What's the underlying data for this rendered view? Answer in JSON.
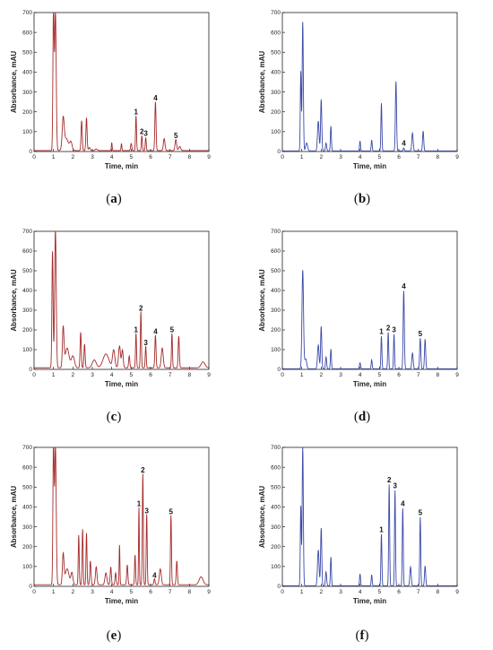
{
  "panels": [
    {
      "caption_letter": "a",
      "color": "#a52a2a",
      "chart_data": {
        "type": "line",
        "xlabel": "Time, min",
        "ylabel": "Absorbance, mAU",
        "xlim": [
          0,
          9
        ],
        "ylim": [
          0,
          700
        ],
        "x_ticks": [
          "0",
          "1",
          "2",
          "3",
          "4",
          "5",
          "6",
          "7",
          "8",
          "9"
        ],
        "y_ticks": [
          "0",
          "100",
          "200",
          "300",
          "400",
          "500",
          "600",
          "700"
        ],
        "baseline": 5,
        "peaks": [
          {
            "x": 1.0,
            "y": 700,
            "w": 0.03
          },
          {
            "x": 1.1,
            "y": 700,
            "w": 0.04
          },
          {
            "x": 1.5,
            "y": 145,
            "w": 0.05
          },
          {
            "x": 1.65,
            "y": 60,
            "w": 0.12
          },
          {
            "x": 1.9,
            "y": 40,
            "w": 0.06
          },
          {
            "x": 2.45,
            "y": 150,
            "w": 0.03
          },
          {
            "x": 2.7,
            "y": 165,
            "w": 0.03
          },
          {
            "x": 2.85,
            "y": 15,
            "w": 0.04
          },
          {
            "x": 3.2,
            "y": 8,
            "w": 0.05
          },
          {
            "x": 4.0,
            "y": 40,
            "w": 0.02
          },
          {
            "x": 4.5,
            "y": 35,
            "w": 0.02
          },
          {
            "x": 5.0,
            "y": 35,
            "w": 0.03
          },
          {
            "x": 5.25,
            "y": 175,
            "w": 0.025
          },
          {
            "x": 5.55,
            "y": 75,
            "w": 0.025
          },
          {
            "x": 5.75,
            "y": 65,
            "w": 0.025
          },
          {
            "x": 6.25,
            "y": 245,
            "w": 0.03
          },
          {
            "x": 6.7,
            "y": 60,
            "w": 0.04
          },
          {
            "x": 7.3,
            "y": 55,
            "w": 0.04
          },
          {
            "x": 7.5,
            "y": 20,
            "w": 0.05
          }
        ],
        "peak_labels": [
          {
            "text": "1",
            "x": 5.25,
            "y": 175
          },
          {
            "text": "2",
            "x": 5.55,
            "y": 75
          },
          {
            "text": "3",
            "x": 5.75,
            "y": 65
          },
          {
            "text": "4",
            "x": 6.25,
            "y": 245
          },
          {
            "text": "5",
            "x": 7.3,
            "y": 55
          }
        ]
      }
    },
    {
      "caption_letter": "b",
      "color": "#3b4aa8",
      "chart_data": {
        "type": "line",
        "xlabel": "Time, min",
        "ylabel": "Absorbance, mAU",
        "xlim": [
          0,
          9
        ],
        "ylim": [
          0,
          700
        ],
        "x_ticks": [
          "0",
          "1",
          "2",
          "3",
          "4",
          "5",
          "6",
          "7",
          "8",
          "9"
        ],
        "y_ticks": [
          "0",
          "100",
          "200",
          "300",
          "400",
          "500",
          "600",
          "700"
        ],
        "baseline": 3,
        "peaks": [
          {
            "x": 0.95,
            "y": 400,
            "w": 0.025
          },
          {
            "x": 1.05,
            "y": 650,
            "w": 0.03
          },
          {
            "x": 1.25,
            "y": 40,
            "w": 0.05
          },
          {
            "x": 1.85,
            "y": 150,
            "w": 0.04
          },
          {
            "x": 2.0,
            "y": 260,
            "w": 0.03
          },
          {
            "x": 2.25,
            "y": 40,
            "w": 0.03
          },
          {
            "x": 2.5,
            "y": 125,
            "w": 0.025
          },
          {
            "x": 4.0,
            "y": 50,
            "w": 0.025
          },
          {
            "x": 4.6,
            "y": 55,
            "w": 0.025
          },
          {
            "x": 5.1,
            "y": 240,
            "w": 0.025
          },
          {
            "x": 5.85,
            "y": 350,
            "w": 0.03
          },
          {
            "x": 6.25,
            "y": 15,
            "w": 0.03
          },
          {
            "x": 6.7,
            "y": 90,
            "w": 0.035
          },
          {
            "x": 7.25,
            "y": 100,
            "w": 0.03
          }
        ],
        "peak_labels": [
          {
            "text": "4",
            "x": 6.25,
            "y": 15
          }
        ]
      }
    },
    {
      "caption_letter": "c",
      "color": "#a52a2a",
      "chart_data": {
        "type": "line",
        "xlabel": "Time, min",
        "ylabel": "Absorbance, mAU",
        "xlim": [
          0,
          9
        ],
        "ylim": [
          0,
          700
        ],
        "x_ticks": [
          "0",
          "1",
          "2",
          "3",
          "4",
          "5",
          "6",
          "7",
          "8",
          "9"
        ],
        "y_ticks": [
          "0",
          "100",
          "200",
          "300",
          "400",
          "500",
          "600",
          "700"
        ],
        "baseline": 8,
        "peaks": [
          {
            "x": 0.95,
            "y": 590,
            "w": 0.03
          },
          {
            "x": 1.1,
            "y": 700,
            "w": 0.04
          },
          {
            "x": 1.5,
            "y": 200,
            "w": 0.04
          },
          {
            "x": 1.7,
            "y": 100,
            "w": 0.1
          },
          {
            "x": 2.0,
            "y": 60,
            "w": 0.08
          },
          {
            "x": 2.4,
            "y": 180,
            "w": 0.03
          },
          {
            "x": 2.6,
            "y": 120,
            "w": 0.03
          },
          {
            "x": 3.1,
            "y": 40,
            "w": 0.1
          },
          {
            "x": 3.7,
            "y": 70,
            "w": 0.15
          },
          {
            "x": 4.1,
            "y": 90,
            "w": 0.06
          },
          {
            "x": 4.4,
            "y": 110,
            "w": 0.05
          },
          {
            "x": 4.55,
            "y": 90,
            "w": 0.04
          },
          {
            "x": 4.9,
            "y": 60,
            "w": 0.03
          },
          {
            "x": 5.25,
            "y": 175,
            "w": 0.025
          },
          {
            "x": 5.5,
            "y": 285,
            "w": 0.025
          },
          {
            "x": 5.75,
            "y": 110,
            "w": 0.025
          },
          {
            "x": 6.25,
            "y": 165,
            "w": 0.03
          },
          {
            "x": 6.6,
            "y": 100,
            "w": 0.05
          },
          {
            "x": 7.1,
            "y": 175,
            "w": 0.025
          },
          {
            "x": 7.45,
            "y": 160,
            "w": 0.03
          },
          {
            "x": 8.7,
            "y": 30,
            "w": 0.1
          }
        ],
        "peak_labels": [
          {
            "text": "1",
            "x": 5.25,
            "y": 175
          },
          {
            "text": "2",
            "x": 5.5,
            "y": 285
          },
          {
            "text": "3",
            "x": 5.75,
            "y": 110
          },
          {
            "text": "4",
            "x": 6.25,
            "y": 165
          },
          {
            "text": "5",
            "x": 7.1,
            "y": 175
          }
        ]
      }
    },
    {
      "caption_letter": "d",
      "color": "#3b4aa8",
      "chart_data": {
        "type": "line",
        "xlabel": "Time, min",
        "ylabel": "Absorbance, mAU",
        "xlim": [
          0,
          9
        ],
        "ylim": [
          0,
          700
        ],
        "x_ticks": [
          "0",
          "1",
          "2",
          "3",
          "4",
          "5",
          "6",
          "7",
          "8",
          "9"
        ],
        "y_ticks": [
          "0",
          "100",
          "200",
          "300",
          "400",
          "500",
          "600",
          "700"
        ],
        "baseline": 3,
        "peaks": [
          {
            "x": 1.05,
            "y": 500,
            "w": 0.04
          },
          {
            "x": 1.2,
            "y": 50,
            "w": 0.05
          },
          {
            "x": 1.85,
            "y": 120,
            "w": 0.04
          },
          {
            "x": 2.0,
            "y": 215,
            "w": 0.03
          },
          {
            "x": 2.25,
            "y": 60,
            "w": 0.03
          },
          {
            "x": 2.5,
            "y": 100,
            "w": 0.025
          },
          {
            "x": 4.0,
            "y": 30,
            "w": 0.03
          },
          {
            "x": 4.6,
            "y": 45,
            "w": 0.025
          },
          {
            "x": 5.1,
            "y": 165,
            "w": 0.025
          },
          {
            "x": 5.45,
            "y": 185,
            "w": 0.025
          },
          {
            "x": 5.75,
            "y": 175,
            "w": 0.025
          },
          {
            "x": 6.25,
            "y": 395,
            "w": 0.03
          },
          {
            "x": 6.7,
            "y": 80,
            "w": 0.035
          },
          {
            "x": 7.1,
            "y": 155,
            "w": 0.03
          },
          {
            "x": 7.35,
            "y": 150,
            "w": 0.03
          }
        ],
        "peak_labels": [
          {
            "text": "1",
            "x": 5.1,
            "y": 165
          },
          {
            "text": "2",
            "x": 5.45,
            "y": 185
          },
          {
            "text": "3",
            "x": 5.75,
            "y": 175
          },
          {
            "text": "4",
            "x": 6.25,
            "y": 395
          },
          {
            "text": "5",
            "x": 7.1,
            "y": 155
          }
        ]
      }
    },
    {
      "caption_letter": "e",
      "color": "#a52a2a",
      "chart_data": {
        "type": "line",
        "xlabel": "Time, min",
        "ylabel": "Absorbance, mAU",
        "xlim": [
          0,
          9
        ],
        "ylim": [
          0,
          700
        ],
        "x_ticks": [
          "0",
          "1",
          "2",
          "3",
          "4",
          "5",
          "6",
          "7",
          "8",
          "9"
        ],
        "y_ticks": [
          "0",
          "100",
          "200",
          "300",
          "400",
          "500",
          "600",
          "700"
        ],
        "baseline": 8,
        "peaks": [
          {
            "x": 1.0,
            "y": 700,
            "w": 0.03
          },
          {
            "x": 1.1,
            "y": 700,
            "w": 0.04
          },
          {
            "x": 1.5,
            "y": 150,
            "w": 0.04
          },
          {
            "x": 1.7,
            "y": 80,
            "w": 0.1
          },
          {
            "x": 1.95,
            "y": 60,
            "w": 0.05
          },
          {
            "x": 2.3,
            "y": 250,
            "w": 0.025
          },
          {
            "x": 2.5,
            "y": 280,
            "w": 0.025
          },
          {
            "x": 2.7,
            "y": 260,
            "w": 0.025
          },
          {
            "x": 2.9,
            "y": 120,
            "w": 0.03
          },
          {
            "x": 3.2,
            "y": 90,
            "w": 0.04
          },
          {
            "x": 3.7,
            "y": 60,
            "w": 0.05
          },
          {
            "x": 3.95,
            "y": 90,
            "w": 0.03
          },
          {
            "x": 4.2,
            "y": 60,
            "w": 0.03
          },
          {
            "x": 4.4,
            "y": 200,
            "w": 0.02
          },
          {
            "x": 4.8,
            "y": 100,
            "w": 0.03
          },
          {
            "x": 5.2,
            "y": 150,
            "w": 0.025
          },
          {
            "x": 5.4,
            "y": 390,
            "w": 0.02
          },
          {
            "x": 5.6,
            "y": 560,
            "w": 0.025
          },
          {
            "x": 5.8,
            "y": 355,
            "w": 0.025
          },
          {
            "x": 6.2,
            "y": 30,
            "w": 0.03
          },
          {
            "x": 6.5,
            "y": 80,
            "w": 0.05
          },
          {
            "x": 7.05,
            "y": 350,
            "w": 0.025
          },
          {
            "x": 7.35,
            "y": 120,
            "w": 0.03
          },
          {
            "x": 8.6,
            "y": 40,
            "w": 0.1
          }
        ],
        "peak_labels": [
          {
            "text": "1",
            "x": 5.4,
            "y": 390
          },
          {
            "text": "2",
            "x": 5.6,
            "y": 560
          },
          {
            "text": "3",
            "x": 5.8,
            "y": 355
          },
          {
            "text": "4",
            "x": 6.2,
            "y": 30
          },
          {
            "text": "5",
            "x": 7.05,
            "y": 350
          }
        ]
      }
    },
    {
      "caption_letter": "f",
      "color": "#3b4aa8",
      "chart_data": {
        "type": "line",
        "xlabel": "Time, min",
        "ylabel": "Absorbance, mAU",
        "xlim": [
          0,
          9
        ],
        "ylim": [
          0,
          700
        ],
        "x_ticks": [
          "0",
          "1",
          "2",
          "3",
          "4",
          "5",
          "6",
          "7",
          "8",
          "9"
        ],
        "y_ticks": [
          "0",
          "100",
          "200",
          "300",
          "400",
          "500",
          "600",
          "700"
        ],
        "baseline": 3,
        "peaks": [
          {
            "x": 0.95,
            "y": 400,
            "w": 0.025
          },
          {
            "x": 1.05,
            "y": 700,
            "w": 0.03
          },
          {
            "x": 1.85,
            "y": 180,
            "w": 0.04
          },
          {
            "x": 2.0,
            "y": 290,
            "w": 0.03
          },
          {
            "x": 2.25,
            "y": 70,
            "w": 0.03
          },
          {
            "x": 2.5,
            "y": 145,
            "w": 0.025
          },
          {
            "x": 4.0,
            "y": 60,
            "w": 0.025
          },
          {
            "x": 4.6,
            "y": 55,
            "w": 0.025
          },
          {
            "x": 5.1,
            "y": 260,
            "w": 0.025
          },
          {
            "x": 5.5,
            "y": 510,
            "w": 0.025
          },
          {
            "x": 5.8,
            "y": 480,
            "w": 0.025
          },
          {
            "x": 6.2,
            "y": 390,
            "w": 0.025
          },
          {
            "x": 6.6,
            "y": 95,
            "w": 0.035
          },
          {
            "x": 7.1,
            "y": 345,
            "w": 0.025
          },
          {
            "x": 7.35,
            "y": 100,
            "w": 0.03
          }
        ],
        "peak_labels": [
          {
            "text": "1",
            "x": 5.1,
            "y": 260
          },
          {
            "text": "2",
            "x": 5.5,
            "y": 510
          },
          {
            "text": "3",
            "x": 5.8,
            "y": 480
          },
          {
            "text": "4",
            "x": 6.2,
            "y": 390
          },
          {
            "text": "5",
            "x": 7.1,
            "y": 345
          }
        ]
      }
    }
  ]
}
